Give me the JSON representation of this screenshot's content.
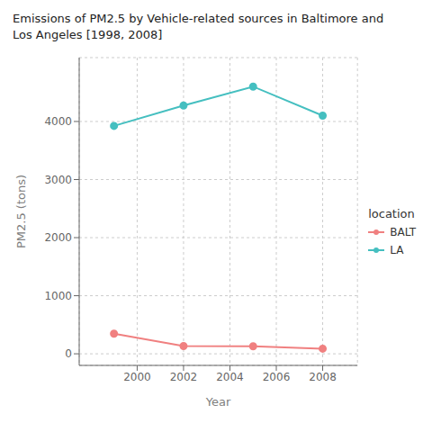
{
  "chart_data": {
    "type": "line",
    "title": "Emissions of PM2.5 by Vehicle-related sources in Baltimore and\nLos Angeles [1998, 2008]",
    "x_label": "Year",
    "y_label": "PM2.5 (tons)",
    "x": [
      1999,
      2002,
      2005,
      2008
    ],
    "series": [
      {
        "name": "BALT",
        "color": "#F08080",
        "values": [
          346,
          134,
          130,
          88
        ],
        "marker": "circle",
        "line_style": "solid"
      },
      {
        "name": "LA",
        "color": "#45BFC0",
        "values": [
          3924,
          4275,
          4601,
          4101
        ],
        "marker": "circle",
        "line_style": "solid"
      }
    ],
    "xlim": [
      1997.5,
      2009.5
    ],
    "ylim": [
      -200,
      5100
    ],
    "xticks": [
      2000,
      2002,
      2004,
      2006,
      2008
    ],
    "yticks": [
      0,
      1000,
      2000,
      3000,
      4000
    ],
    "grid": true,
    "legend": "right",
    "legend_title": "location"
  }
}
